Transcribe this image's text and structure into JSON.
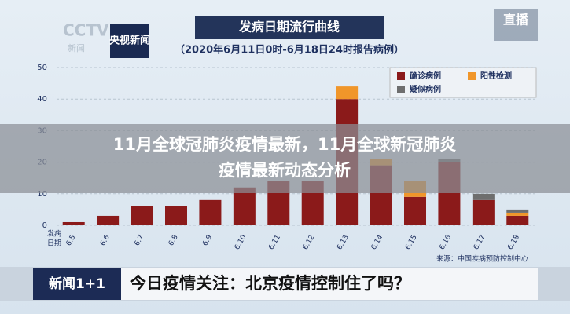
{
  "broadcast": {
    "channel_logo": "CCTV 13",
    "channel_sub": "新闻",
    "brand": "央视新闻",
    "live": "直播"
  },
  "chart_data": {
    "type": "bar",
    "stacked": true,
    "title": "发病日期流行曲线",
    "subtitle": "（2020年6月11日0时-6月18日24时报告病例）",
    "x_label_lines": [
      "发病",
      "日期"
    ],
    "source": "来源：中国疾病预防控制中心",
    "categories": [
      "6.5",
      "6.6",
      "6.7",
      "6.8",
      "6.9",
      "6.10",
      "6.11",
      "6.12",
      "6.13",
      "6.14",
      "6.15",
      "6.16",
      "6.17",
      "6.18"
    ],
    "series": [
      {
        "name": "确诊病例",
        "color": "#8b1a1a",
        "values": [
          1,
          3,
          6,
          6,
          8,
          12,
          14,
          14,
          40,
          19,
          9,
          20,
          8,
          3
        ]
      },
      {
        "name": "阳性检测",
        "color": "#f0962a",
        "values": [
          null,
          null,
          null,
          null,
          null,
          null,
          null,
          null,
          4,
          2,
          5,
          null,
          null,
          1
        ]
      },
      {
        "name": "疑似病例",
        "color": "#6e6e6e",
        "values": [
          null,
          null,
          null,
          null,
          null,
          null,
          null,
          null,
          null,
          null,
          null,
          1,
          2,
          1
        ]
      }
    ],
    "ylim": [
      0,
      50
    ],
    "yticks": [
      0,
      10,
      20,
      30,
      40,
      50
    ],
    "grid": true
  },
  "overlay": {
    "headline": [
      "11月全球冠肺炎疫情最新，11月全球新冠肺炎",
      "疫情最新动态分析"
    ]
  },
  "lower_third": {
    "program": "新闻1+1",
    "text": "今日疫情关注：北京疫情控制住了吗？"
  }
}
